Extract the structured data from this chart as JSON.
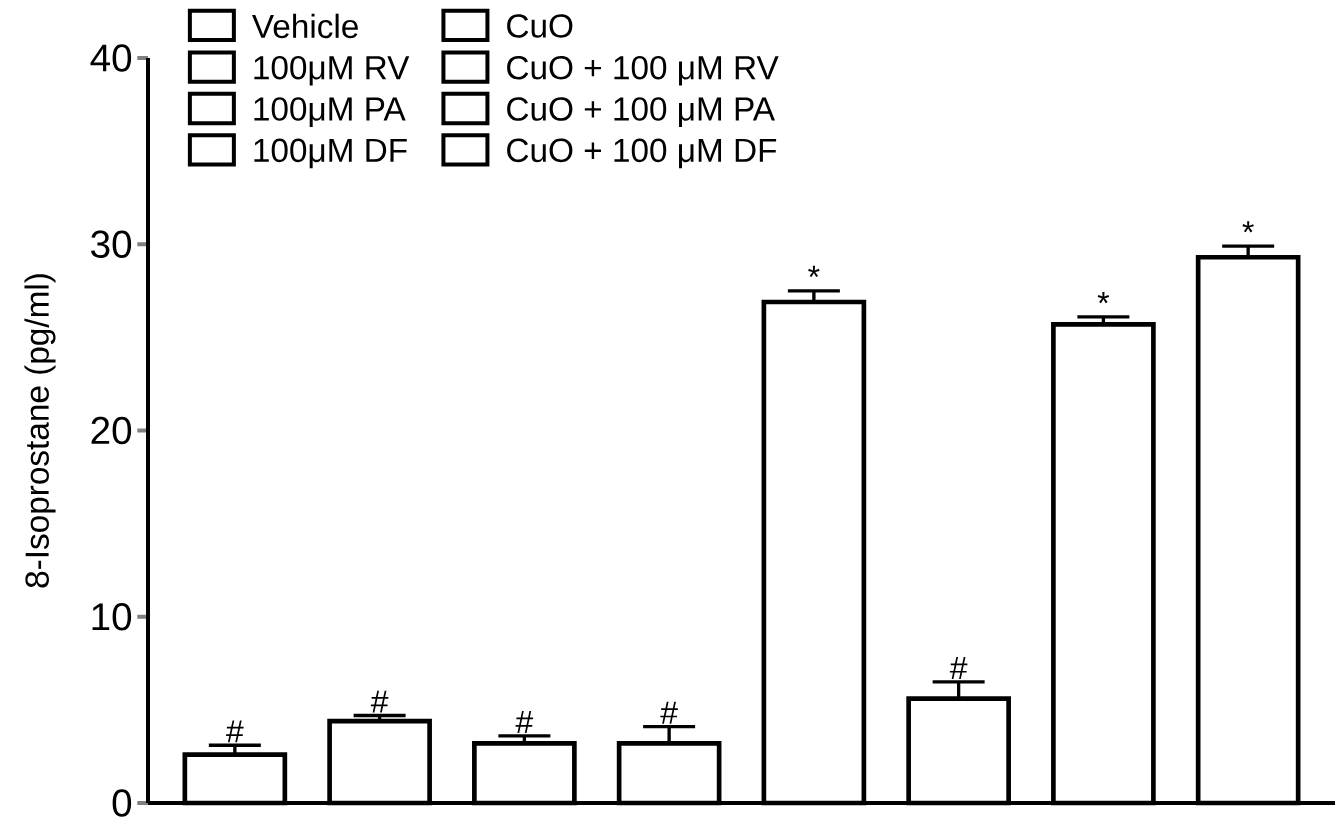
{
  "chart_data": {
    "type": "bar",
    "ylabel": "8-Isoprostane (pg/ml)",
    "categories": [
      null
    ],
    "ylim": [
      0,
      40
    ],
    "yticks": [
      0,
      10,
      20,
      30,
      40
    ],
    "legend": "top left",
    "series": [
      {
        "name": "Vehicle",
        "color": "#000000",
        "values": [
          2.6
        ],
        "errors": [
          [
            2.6,
            3.1
          ]
        ],
        "value_labels": [
          "#"
        ]
      },
      {
        "name": "100μM RV",
        "color": "#000000",
        "values": [
          4.4
        ],
        "errors": [
          [
            4.4,
            4.7
          ]
        ],
        "value_labels": [
          "#"
        ]
      },
      {
        "name": "100μM PA",
        "color": "#000000",
        "values": [
          3.2
        ],
        "errors": [
          [
            3.2,
            3.6
          ]
        ],
        "value_labels": [
          "#"
        ]
      },
      {
        "name": "100μM DF",
        "color": "#000000",
        "values": [
          3.2
        ],
        "errors": [
          [
            3.2,
            4.1
          ]
        ],
        "value_labels": [
          "#"
        ]
      },
      {
        "name": "CuO",
        "color": "#000000",
        "values": [
          26.9
        ],
        "errors": [
          [
            26.9,
            27.5
          ]
        ],
        "value_labels": [
          "*"
        ]
      },
      {
        "name": "CuO + 100 μM RV",
        "color": "#000000",
        "values": [
          5.6
        ],
        "errors": [
          [
            5.6,
            6.5
          ]
        ],
        "value_labels": [
          "#"
        ]
      },
      {
        "name": "CuO + 100 μM PA",
        "color": "#000000",
        "values": [
          25.7
        ],
        "errors": [
          [
            25.7,
            26.1
          ]
        ],
        "value_labels": [
          "*"
        ]
      },
      {
        "name": "CuO + 100 μM DF",
        "color": "#000000",
        "values": [
          29.3
        ],
        "errors": [
          [
            29.3,
            29.9
          ]
        ],
        "value_labels": [
          "*"
        ]
      }
    ]
  }
}
